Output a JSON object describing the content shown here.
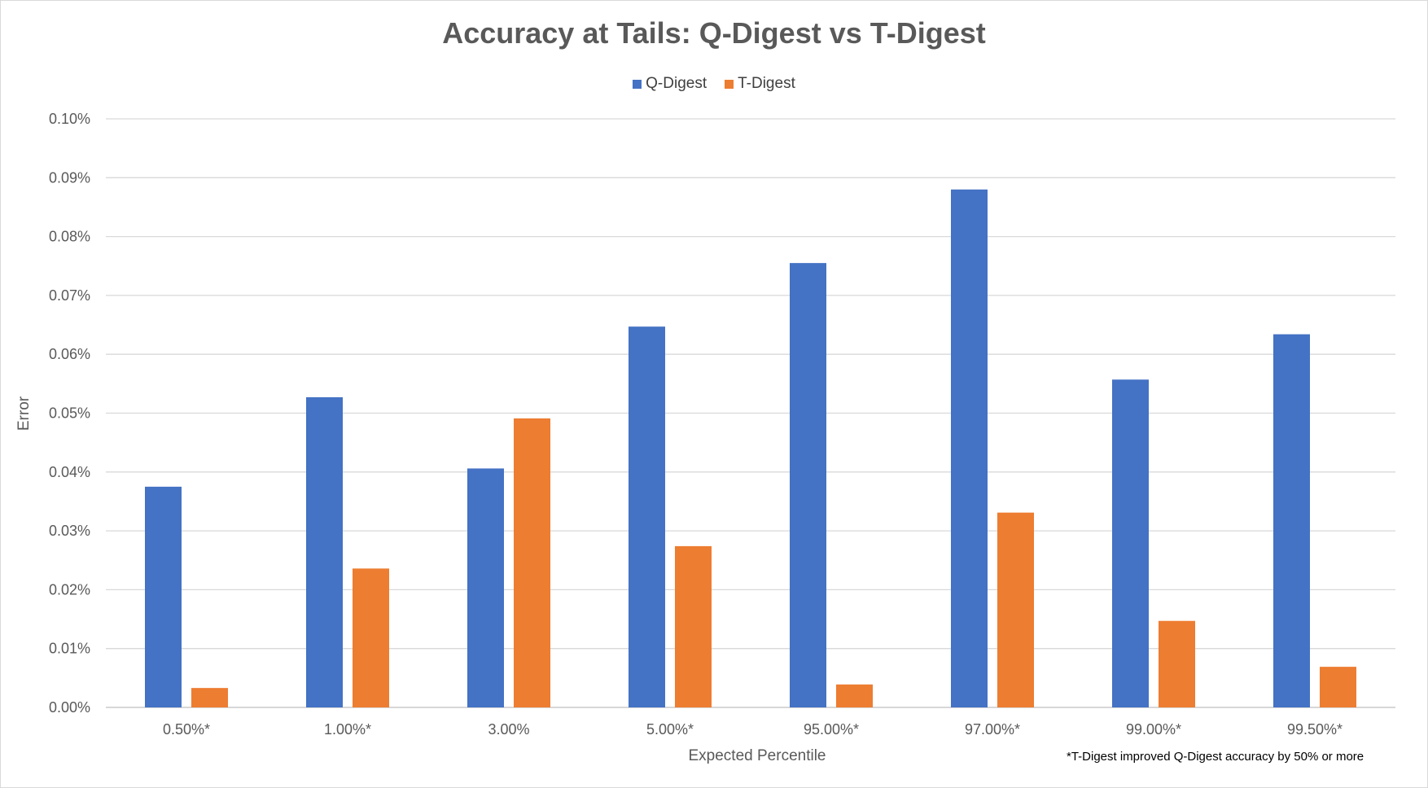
{
  "chart_data": {
    "type": "bar",
    "title": "Accuracy at Tails: Q-Digest vs T-Digest",
    "xlabel": "Expected Percentile",
    "ylabel": "Error",
    "footnote": "*T-Digest improved Q-Digest accuracy by 50% or more",
    "categories": [
      "0.50%*",
      "1.00%*",
      "3.00%",
      "5.00%*",
      "95.00%*",
      "97.00%*",
      "99.00%*",
      "99.50%*"
    ],
    "y_ticks": [
      "0.00%",
      "0.01%",
      "0.02%",
      "0.03%",
      "0.04%",
      "0.05%",
      "0.06%",
      "0.07%",
      "0.08%",
      "0.09%",
      "0.10%"
    ],
    "ylim": [
      0,
      0.1
    ],
    "grid": true,
    "legend_position": "top-center",
    "series": [
      {
        "name": "Q-Digest",
        "color": "#4472C4",
        "values": [
          0.0375,
          0.0527,
          0.0406,
          0.0647,
          0.0755,
          0.088,
          0.0557,
          0.0634
        ]
      },
      {
        "name": "T-Digest",
        "color": "#ED7D31",
        "values": [
          0.0033,
          0.0236,
          0.0491,
          0.0274,
          0.0039,
          0.0331,
          0.0147,
          0.0069
        ]
      }
    ]
  }
}
